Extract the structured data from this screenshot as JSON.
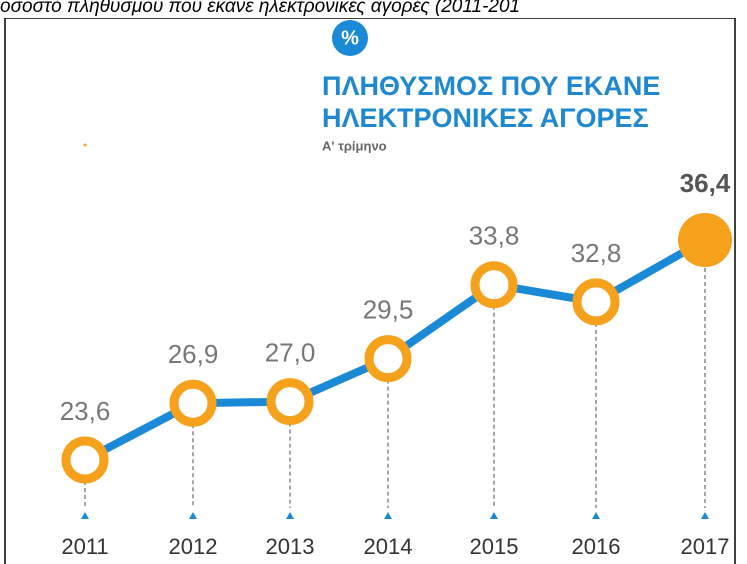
{
  "chart_data": {
    "type": "line",
    "caption": "οσοστό πληθυσμού που έκανε ηλεκτρονικές αγορές (2011-201",
    "badge": "%",
    "title": [
      "ΠΛΗΘΥΣΜΟΣ ΠΟΥ ΕΚΑΝΕ",
      "ΗΛΕΚΤΡΟΝΙΚΕΣ ΑΓΟΡΕΣ"
    ],
    "subtitle": "Α' τρίμηνο",
    "categories": [
      "2011",
      "2012",
      "2013",
      "2014",
      "2015",
      "2016",
      "2017"
    ],
    "series": [
      {
        "color": "#1b8ad6",
        "marker_color": "#f5a11c",
        "values": [
          23.6,
          26.9,
          27.0,
          29.5,
          33.8,
          32.8,
          36.4
        ],
        "value_labels": [
          "23,6",
          "26,9",
          "27,0",
          "29,5",
          "33,8",
          "32,8",
          "36,4"
        ]
      }
    ]
  }
}
